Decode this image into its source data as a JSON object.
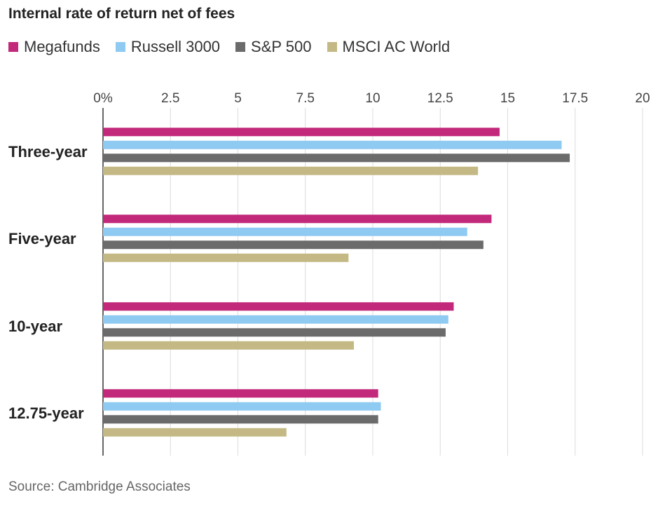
{
  "chart_data": {
    "type": "bar",
    "orientation": "horizontal",
    "title": "Internal rate of return net of fees",
    "categories": [
      "Three-year",
      "Five-year",
      "10-year",
      "12.75-year"
    ],
    "series": [
      {
        "name": "Megafunds",
        "color": "#c2297a",
        "values": [
          14.7,
          14.4,
          13.0,
          10.2
        ]
      },
      {
        "name": "Russell 3000",
        "color": "#8fcaf2",
        "values": [
          17.0,
          13.5,
          12.8,
          10.3
        ]
      },
      {
        "name": "S&P 500",
        "color": "#6b6b6b",
        "values": [
          17.3,
          14.1,
          12.7,
          10.2
        ]
      },
      {
        "name": "MSCI AC World",
        "color": "#c4b984",
        "values": [
          13.9,
          9.1,
          9.3,
          6.8
        ]
      }
    ],
    "xlim": [
      0,
      20
    ],
    "xticks": [
      "0%",
      "2.5",
      "5",
      "7.5",
      "10",
      "12.5",
      "15",
      "17.5",
      "20"
    ],
    "xtick_values": [
      0,
      2.5,
      5,
      7.5,
      10,
      12.5,
      15,
      17.5,
      20
    ],
    "xlabel": "",
    "ylabel": "",
    "grid": true,
    "legend_position": "top-left",
    "source": "Source: Cambridge Associates"
  }
}
